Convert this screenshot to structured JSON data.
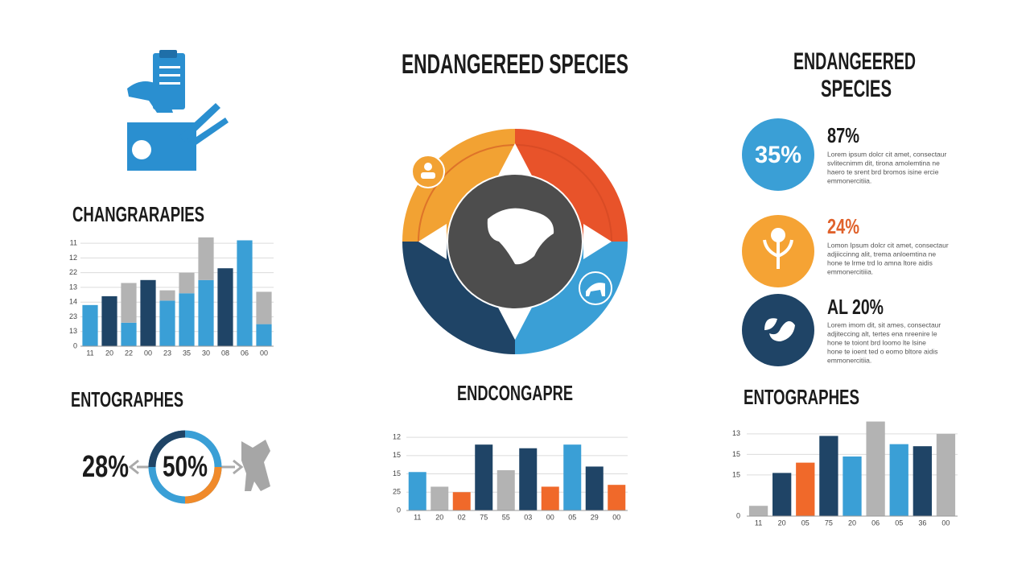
{
  "title": "ENDANGEREED SPECIES",
  "side_title": [
    "ENDANGEERED",
    "SPECIES"
  ],
  "stats": [
    {
      "circle_label": "35%",
      "value": "87%",
      "text": [
        "Lorem ipsum dolcr cit amet, consectaur",
        "svlitecnimm dit, tirona amolemtina ne",
        "haero te srent brd bromos isine ercie",
        "emmonercitiia."
      ]
    },
    {
      "value": "24%",
      "text": [
        "Lomon Ipsum dolcr cit amet, consectaur",
        "adjiiccinng alit, trema anloemtina ne",
        "hone te lrme trd lo amna ltore aidis",
        "emmonercitiiia."
      ]
    },
    {
      "value": "AL 20%",
      "text": [
        "Lorem imom dit, sit ames, consectaur",
        "adjiteccing alt, tertes ena nreenire le",
        "hone te toiont brd loomo lte lsine",
        "hone te ioent ted o eomo bltore aidis",
        "emmonercitiia."
      ]
    }
  ],
  "bottom_left_title": "ENTOGRAPHES",
  "left_label": "28%",
  "ring_label": "50%",
  "chart_data": [
    {
      "type": "bar",
      "title": "CHANGRARAPIES",
      "stacked": true,
      "categories": [
        "11",
        "20",
        "22",
        "00",
        "23",
        "35",
        "30",
        "08",
        "06",
        "00"
      ],
      "series": [
        {
          "color": "#3a9fd6",
          "values": [
            2.8,
            null,
            1.6,
            null,
            3.1,
            3.6,
            4.5,
            null,
            7.2,
            1.5
          ]
        },
        {
          "color": "#1f4466",
          "values": [
            null,
            3.4,
            null,
            4.5,
            null,
            null,
            null,
            5.3,
            null,
            null
          ]
        },
        {
          "color": "#b3b3b3",
          "values": [
            null,
            null,
            2.7,
            null,
            0.7,
            1.4,
            2.9,
            null,
            null,
            2.2
          ]
        }
      ],
      "ylim": [
        0,
        7.5
      ],
      "yticks": [
        0,
        {
          "value": 1,
          "label": "13"
        },
        {
          "value": 2,
          "label": "23"
        },
        {
          "value": 3,
          "label": "14"
        },
        {
          "value": 4,
          "label": "13"
        },
        {
          "value": 5,
          "label": "22"
        },
        {
          "value": 6,
          "label": "12"
        },
        {
          "value": 7,
          "label": "11"
        }
      ],
      "grid": true
    },
    {
      "type": "bar",
      "title": "ENDCONGAPRE",
      "categories": [
        "11",
        "20",
        "02",
        "75",
        "55",
        "03",
        "00",
        "05",
        "29",
        "00"
      ],
      "values": [
        2.1,
        1.3,
        1.0,
        3.6,
        2.2,
        3.4,
        1.3,
        3.6,
        2.4,
        1.4
      ],
      "colors": [
        "#3a9fd6",
        "#b3b3b3",
        "#f0692a",
        "#1f4466",
        "#b3b3b3",
        "#1f4466",
        "#f0692a",
        "#3a9fd6",
        "#1f4466",
        "#f0692a"
      ],
      "ylim": [
        0,
        4.4
      ],
      "yticks": [
        0,
        {
          "value": 1,
          "label": "25"
        },
        {
          "value": 2,
          "label": "15"
        },
        {
          "value": 3,
          "label": "15"
        },
        {
          "value": 4,
          "label": "12"
        }
      ],
      "grid": true
    },
    {
      "type": "bar",
      "title": "ENTOGRAPHES",
      "categories": [
        "11",
        "20",
        "05",
        "75",
        "20",
        "06",
        "05",
        "36",
        "00"
      ],
      "values": [
        0.5,
        2.1,
        2.6,
        3.9,
        2.9,
        4.6,
        3.5,
        3.4,
        4.0
      ],
      "colors": [
        "#b3b3b3",
        "#1f4466",
        "#f0692a",
        "#1f4466",
        "#3a9fd6",
        "#b3b3b3",
        "#3a9fd6",
        "#1f4466",
        "#b3b3b3"
      ],
      "ylim": [
        0,
        4.7
      ],
      "yticks": [
        0,
        {
          "value": 2,
          "label": "15"
        },
        {
          "value": 3,
          "label": "15"
        },
        {
          "value": 4,
          "label": "13"
        }
      ],
      "grid": true
    }
  ]
}
